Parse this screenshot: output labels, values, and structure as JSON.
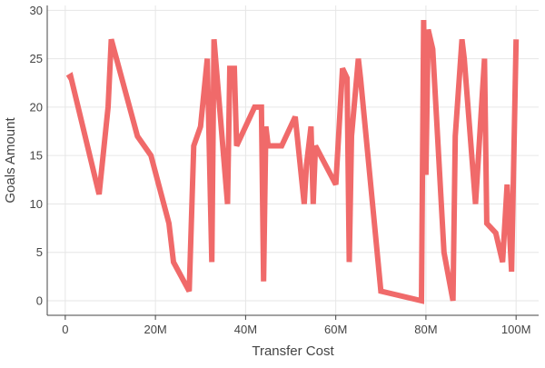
{
  "chart_data": {
    "type": "line",
    "title": "",
    "xlabel": "Transfer Cost",
    "ylabel": "Goals Amount",
    "xlim": [
      -4,
      105
    ],
    "ylim": [
      -1.5,
      30.5
    ],
    "x_ticks": [
      0,
      20,
      40,
      60,
      80,
      100
    ],
    "x_tick_labels": [
      "0",
      "20M",
      "40M",
      "60M",
      "80M",
      "100M"
    ],
    "y_ticks": [
      0,
      5,
      10,
      15,
      20,
      25,
      30
    ],
    "y_tick_labels": [
      "0",
      "5",
      "10",
      "15",
      "20",
      "25",
      "30"
    ],
    "grid": true,
    "legend": "none",
    "series": [
      {
        "color": "#f06a6a",
        "x": [
          0.5,
          1.2,
          7.5,
          9.5,
          10.2,
          16,
          19,
          23,
          24,
          27.5,
          28.5,
          30,
          31.5,
          32.5,
          33,
          36,
          36.5,
          37.5,
          38,
          42,
          43.5,
          44,
          44.5,
          45,
          48,
          51,
          53,
          53.5,
          54.5,
          55,
          55.5,
          60,
          61.5,
          62.5,
          63,
          63.5,
          65,
          65.5,
          70,
          79,
          79.5,
          80,
          80.5,
          81,
          81.5,
          84,
          86,
          86.5,
          88,
          88.5,
          91,
          93,
          93.5,
          95.5,
          97,
          98,
          99,
          100
        ],
        "y": [
          23,
          23.2,
          11,
          20,
          27,
          17,
          15,
          8,
          4,
          1,
          16,
          18,
          25,
          4,
          27,
          10,
          24,
          24,
          16,
          20,
          20,
          2,
          18,
          16,
          16,
          19,
          10,
          14,
          18,
          10,
          16,
          12,
          24,
          23,
          4,
          17,
          25,
          23,
          1,
          0,
          29,
          13,
          28,
          27,
          26,
          5,
          0,
          17,
          27,
          25,
          10,
          25,
          8,
          7,
          4,
          12,
          3,
          27
        ]
      }
    ]
  }
}
